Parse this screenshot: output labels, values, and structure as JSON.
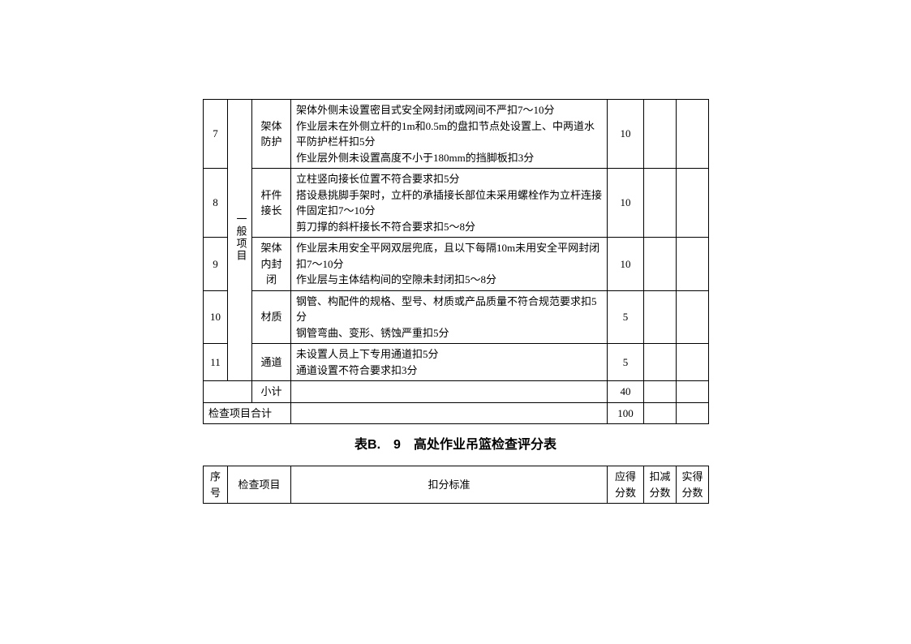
{
  "table1": {
    "category": "一般项目",
    "rows": [
      {
        "seq": "7",
        "item": "架体防护",
        "criteria": [
          "架体外侧未设置密目式安全网封闭或网间不严扣7～10分",
          "作业层未在外侧立杆的1m和0.5m的盘扣节点处设置上、中两道水平防护栏杆扣5分",
          "作业层外侧未设置高度不小于180mm的挡脚板扣3分"
        ],
        "score": "10"
      },
      {
        "seq": "8",
        "item": "杆件接长",
        "criteria": [
          "立柱竖向接长位置不符合要求扣5分",
          "搭设悬挑脚手架时，立杆的承插接长部位未采用螺栓作为立杆连接件固定扣7～10分",
          "剪刀撑的斜杆接长不符合要求扣5～8分"
        ],
        "score": "10"
      },
      {
        "seq": "9",
        "item": "架体内封闭",
        "criteria": [
          "作业层未用安全平网双层兜底，且以下每隔10m未用安全平网封闭扣7～10分",
          "作业层与主体结构间的空隙未封闭扣5～8分"
        ],
        "score": "10"
      },
      {
        "seq": "10",
        "item": "材质",
        "criteria": [
          "钢管、构配件的规格、型号、材质或产品质量不符合规范要求扣5分",
          "钢管弯曲、变形、锈蚀严重扣5分"
        ],
        "score": "5"
      },
      {
        "seq": "11",
        "item": "通道",
        "criteria": [
          "未设置人员上下专用通道扣5分",
          "通道设置不符合要求扣3分"
        ],
        "score": "5"
      }
    ],
    "subtotal_label": "小计",
    "subtotal_score": "40",
    "total_label": "检查项目合计",
    "total_score": "100"
  },
  "table2_title": "表B.　9　高处作业吊篮检查评分表",
  "table2": {
    "headers": {
      "seq": "序号",
      "item": "检查项目",
      "criteria": "扣分标准",
      "score": "应得分数",
      "deduct": "扣减分数",
      "actual": "实得分数"
    }
  },
  "colors": {
    "text": "#000000",
    "border": "#000000",
    "background": "#ffffff"
  },
  "fonts": {
    "body_family": "SimSun",
    "body_size": 13,
    "title_family": "SimHei",
    "title_size": 16,
    "title_weight": "bold"
  }
}
